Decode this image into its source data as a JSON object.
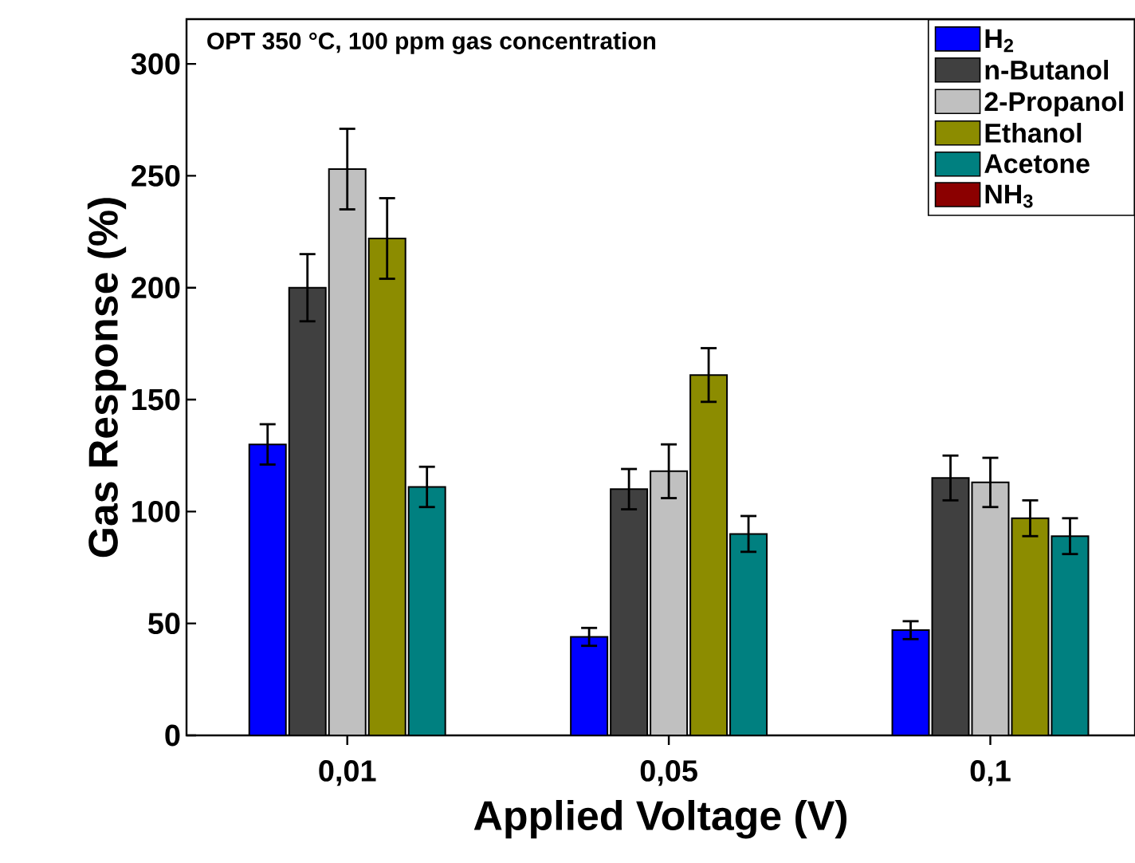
{
  "chart_data": {
    "type": "bar",
    "title": "OPT 350 °C, 100 ppm gas concentration",
    "xlabel": "Applied Voltage (V)",
    "ylabel": "Gas Response (%)",
    "categories": [
      "0,01",
      "0,05",
      "0,1"
    ],
    "series": [
      {
        "name": "H$_{2}$",
        "color": "#0000ff",
        "values": [
          130,
          44,
          47
        ],
        "errors": [
          9,
          4,
          4
        ]
      },
      {
        "name": "n-Butanol",
        "color": "#404040",
        "values": [
          200,
          110,
          115
        ],
        "errors": [
          15,
          9,
          10
        ]
      },
      {
        "name": "2-Propanol",
        "color": "#c0c0c0",
        "values": [
          253,
          118,
          113
        ],
        "errors": [
          18,
          12,
          11
        ]
      },
      {
        "name": "Ethanol",
        "color": "#8c8c00",
        "values": [
          222,
          161,
          97
        ],
        "errors": [
          18,
          12,
          8
        ]
      },
      {
        "name": "Acetone",
        "color": "#008080",
        "values": [
          111,
          90,
          89
        ],
        "errors": [
          9,
          8,
          8
        ]
      },
      {
        "name": "NH$_{3}$",
        "color": "#8b0000",
        "values": [
          null,
          null,
          null
        ]
      }
    ],
    "ylim": [
      0,
      320
    ],
    "yticks": [
      0,
      50,
      100,
      150,
      200,
      250,
      300
    ],
    "grid": false,
    "legend": "top right"
  }
}
